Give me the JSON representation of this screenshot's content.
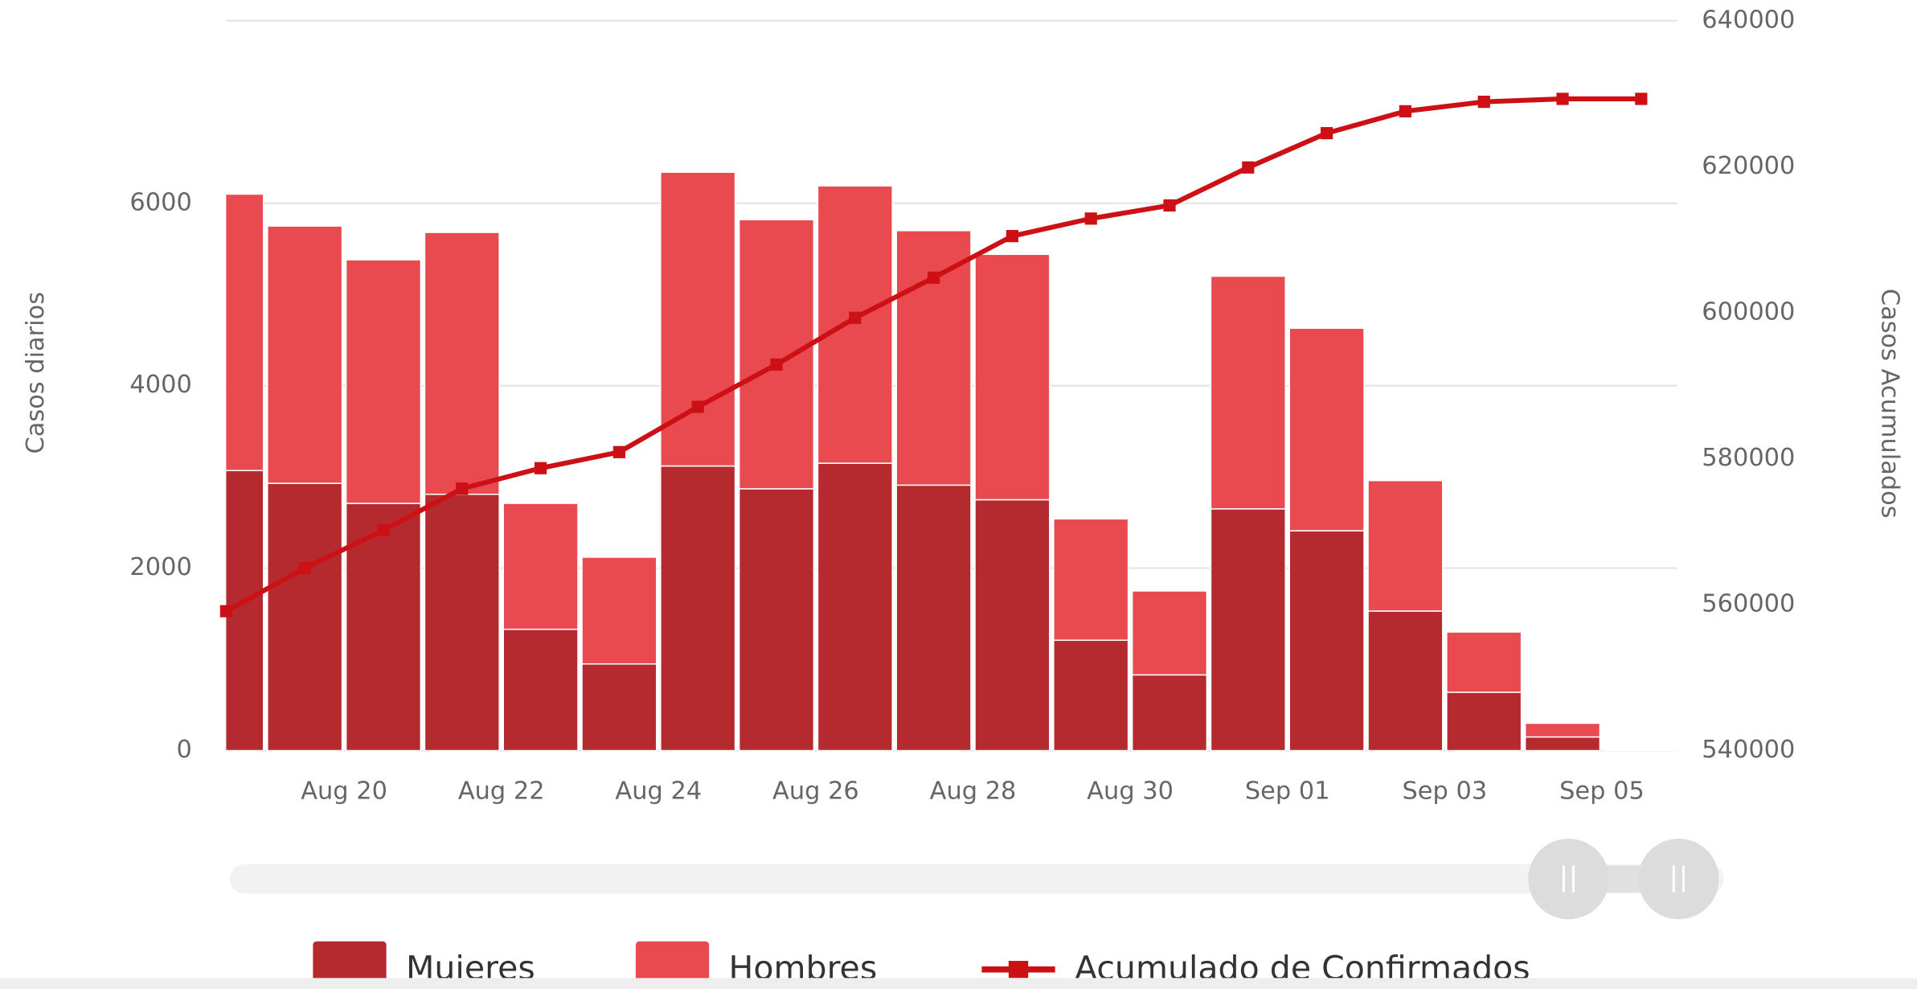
{
  "chart_data": {
    "type": "bar",
    "categories": [
      null,
      "Aug 20",
      null,
      "Aug 22",
      null,
      "Aug 24",
      null,
      "Aug 26",
      null,
      "Aug 28",
      null,
      "Aug 30",
      null,
      "Sep 01",
      null,
      "Sep 03",
      null,
      "Sep 05",
      null
    ],
    "stacked": true,
    "series": [
      {
        "name": "Mujeres",
        "color": "#b52a2f",
        "values": [
          3070,
          2930,
          2710,
          2810,
          1330,
          950,
          3120,
          2870,
          3150,
          2910,
          2750,
          1210,
          830,
          2650,
          2410,
          1530,
          640,
          150,
          10
        ]
      },
      {
        "name": "Hombres",
        "color": "#e84a50",
        "values": [
          3030,
          2820,
          2670,
          2870,
          1380,
          1170,
          3220,
          2950,
          3040,
          2790,
          2690,
          1330,
          920,
          2550,
          2220,
          1430,
          660,
          150,
          10
        ]
      },
      {
        "name": "Acumulado de Confirmados",
        "color": "#cc1016",
        "type": "line",
        "axis": "y2",
        "values": [
          559100,
          565000,
          570200,
          575900,
          578700,
          580900,
          587100,
          592900,
          599300,
          604800,
          610500,
          612900,
          614700,
          619900,
          624600,
          627600,
          628900,
          629300,
          629300
        ]
      }
    ],
    "ylabel": "Casos diarios",
    "y2label": "Casos Acumulados",
    "ylim": [
      0,
      8000
    ],
    "yticks": [
      0,
      2000,
      4000,
      6000
    ],
    "y2lim": [
      540000,
      640000
    ],
    "y2ticks": [
      540000,
      560000,
      580000,
      600000,
      620000,
      640000
    ],
    "grid": true,
    "legend": "bottom"
  }
}
